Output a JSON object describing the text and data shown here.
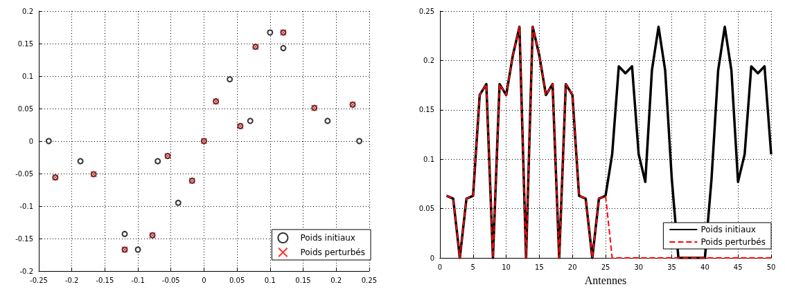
{
  "chart_data": [
    {
      "type": "scatter",
      "xlim": [
        -0.25,
        0.25
      ],
      "ylim": [
        -0.2,
        0.2
      ],
      "xticks": [
        -0.25,
        -0.2,
        -0.15,
        -0.1,
        -0.05,
        0,
        0.05,
        0.1,
        0.15,
        0.2,
        0.25
      ],
      "yticks": [
        -0.2,
        -0.15,
        -0.1,
        -0.05,
        0,
        0.05,
        0.1,
        0.15,
        0.2
      ],
      "grid": true,
      "legend": "bottom right",
      "series": [
        {
          "name": "Poids initiaux",
          "color": "#000000",
          "marker": "circle",
          "x": [
            -0.235,
            -0.187,
            -0.12,
            -0.1,
            -0.07,
            -0.039,
            0.039,
            0.07,
            0.1,
            0.12,
            0.187,
            0.235,
            -0.225,
            -0.167,
            -0.12,
            -0.078,
            -0.055,
            -0.018,
            0,
            0.018,
            0.055,
            0.078,
            0.12,
            0.167,
            0.225
          ],
          "values": [
            0,
            -0.031,
            -0.143,
            -0.167,
            -0.031,
            -0.095,
            0.095,
            0.031,
            0.167,
            0.143,
            0.031,
            0,
            -0.056,
            -0.051,
            -0.167,
            -0.145,
            -0.023,
            -0.061,
            0,
            0.061,
            0.023,
            0.145,
            0.167,
            0.051,
            0.056
          ]
        },
        {
          "name": "Poids perturbés",
          "color": "#ff0000",
          "marker": "cross",
          "x": [
            -0.225,
            -0.167,
            -0.12,
            -0.078,
            -0.055,
            -0.018,
            0,
            0.018,
            0.055,
            0.078,
            0.12,
            0.167,
            0.225
          ],
          "values": [
            -0.056,
            -0.051,
            -0.167,
            -0.145,
            -0.023,
            -0.061,
            0,
            0.061,
            0.023,
            0.145,
            0.167,
            0.051,
            0.056
          ]
        }
      ]
    },
    {
      "type": "line",
      "xlabel": "Antennes",
      "xlim": [
        0,
        50
      ],
      "ylim": [
        0,
        0.25
      ],
      "xticks": [
        0,
        5,
        10,
        15,
        20,
        25,
        30,
        35,
        40,
        45,
        50
      ],
      "yticks": [
        0,
        0.05,
        0.1,
        0.15,
        0.2,
        0.25
      ],
      "grid": true,
      "legend": "bottom right",
      "marker": "none",
      "x": [
        1,
        2,
        3,
        4,
        5,
        6,
        7,
        8,
        9,
        10,
        11,
        12,
        13,
        14,
        15,
        16,
        17,
        18,
        19,
        20,
        21,
        22,
        23,
        24,
        25,
        26,
        27,
        28,
        29,
        30,
        31,
        32,
        33,
        34,
        35,
        36,
        37,
        38,
        39,
        40,
        41,
        42,
        43,
        44,
        45,
        46,
        47,
        48,
        49,
        50
      ],
      "series": [
        {
          "name": "Poids initiaux",
          "color": "#000000",
          "line_style": "solid",
          "values": [
            0.063,
            0.06,
            0,
            0.06,
            0.063,
            0.165,
            0.176,
            0,
            0.176,
            0.165,
            0.205,
            0.234,
            0,
            0.234,
            0.205,
            0.165,
            0.176,
            0,
            0.176,
            0.165,
            0.063,
            0.06,
            0,
            0.06,
            0.063,
            0.105,
            0.194,
            0.187,
            0.194,
            0.105,
            0.077,
            0.19,
            0.234,
            0.19,
            0.08,
            0,
            0,
            0,
            0,
            0,
            0.08,
            0.19,
            0.234,
            0.19,
            0.077,
            0.105,
            0.194,
            0.187,
            0.194,
            0.105
          ]
        },
        {
          "name": "Poids perturbés",
          "color": "#ff0000",
          "line_style": "dashed",
          "values": [
            0.063,
            0.06,
            0,
            0.06,
            0.063,
            0.165,
            0.176,
            0,
            0.176,
            0.165,
            0.205,
            0.234,
            0,
            0.234,
            0.205,
            0.165,
            0.176,
            0,
            0.176,
            0.165,
            0.063,
            0.06,
            0,
            0.06,
            0.063,
            0,
            0,
            0,
            0,
            0,
            0,
            0,
            0,
            0,
            0,
            0,
            0,
            0,
            0,
            0,
            0,
            0,
            0,
            0,
            0,
            0,
            0,
            0,
            0,
            0
          ]
        }
      ]
    }
  ]
}
